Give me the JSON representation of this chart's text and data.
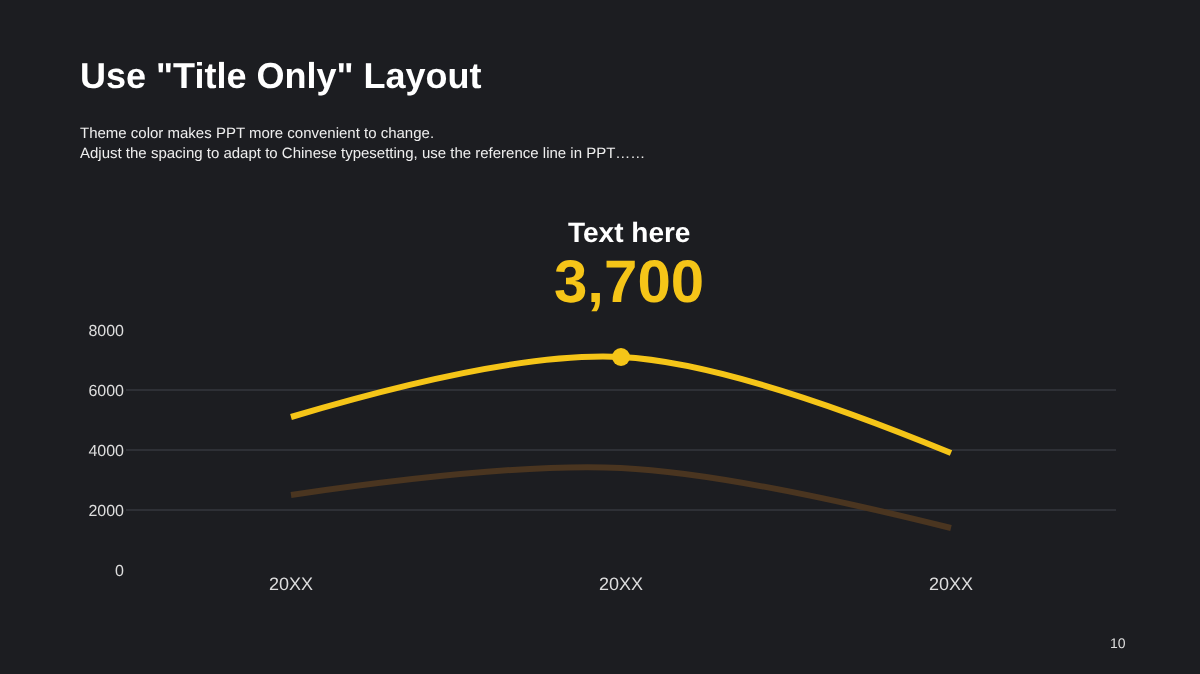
{
  "chart_data": {
    "type": "line",
    "title": "Use \"Title Only\" Layout",
    "subtitle": "Theme color makes PPT more convenient to change.\nAdjust the spacing to adapt to Chinese typesetting, use the reference line in PPT……",
    "categories": [
      "20XX",
      "20XX",
      "20XX"
    ],
    "series": [
      {
        "color": "#4a3520",
        "values": [
          2500,
          3400,
          1400
        ]
      },
      {
        "color": "#f5c518",
        "values": [
          5100,
          7100,
          3900
        ]
      },
      {
        "type": "scatter",
        "color": "#f5c518",
        "marker": "circle",
        "values": [
          null,
          7100,
          null
        ]
      }
    ],
    "ylim": [
      0,
      8000
    ],
    "yticks": [
      0,
      2000,
      4000,
      6000,
      8000
    ],
    "grid": "y",
    "legend": false,
    "line_style": "solid",
    "annotations": [
      "Text here",
      "3,700",
      "10"
    ]
  }
}
